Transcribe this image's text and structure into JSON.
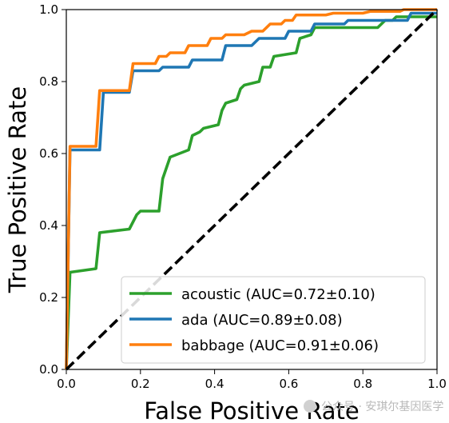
{
  "chart_data": {
    "type": "line",
    "xlabel": "False Positive Rate",
    "ylabel": "True Positive Rate",
    "xlim": [
      0.0,
      1.0
    ],
    "ylim": [
      0.0,
      1.0
    ],
    "xticks": [
      "0.0",
      "0.2",
      "0.4",
      "0.6",
      "0.8",
      "1.0"
    ],
    "yticks": [
      "0.0",
      "0.2",
      "0.4",
      "0.6",
      "0.8",
      "1.0"
    ],
    "grid": false,
    "legend_position": "lower-right",
    "series": [
      {
        "name": "acoustic (AUC=0.72±0.10)",
        "color": "#2ca02c",
        "points": [
          [
            0.0,
            0.0
          ],
          [
            0.01,
            0.27
          ],
          [
            0.08,
            0.28
          ],
          [
            0.09,
            0.38
          ],
          [
            0.17,
            0.39
          ],
          [
            0.19,
            0.43
          ],
          [
            0.2,
            0.44
          ],
          [
            0.25,
            0.44
          ],
          [
            0.26,
            0.53
          ],
          [
            0.28,
            0.59
          ],
          [
            0.33,
            0.61
          ],
          [
            0.34,
            0.65
          ],
          [
            0.36,
            0.66
          ],
          [
            0.37,
            0.67
          ],
          [
            0.41,
            0.68
          ],
          [
            0.42,
            0.72
          ],
          [
            0.43,
            0.74
          ],
          [
            0.46,
            0.75
          ],
          [
            0.47,
            0.78
          ],
          [
            0.48,
            0.79
          ],
          [
            0.52,
            0.8
          ],
          [
            0.53,
            0.84
          ],
          [
            0.55,
            0.84
          ],
          [
            0.56,
            0.87
          ],
          [
            0.62,
            0.88
          ],
          [
            0.63,
            0.92
          ],
          [
            0.66,
            0.93
          ],
          [
            0.67,
            0.95
          ],
          [
            0.84,
            0.95
          ],
          [
            0.86,
            0.97
          ],
          [
            0.88,
            0.97
          ],
          [
            0.89,
            0.98
          ],
          [
            1.0,
            0.98
          ]
        ]
      },
      {
        "name": "ada (AUC=0.89±0.08)",
        "color": "#1f77b4",
        "points": [
          [
            0.0,
            0.0
          ],
          [
            0.01,
            0.61
          ],
          [
            0.09,
            0.61
          ],
          [
            0.1,
            0.77
          ],
          [
            0.17,
            0.77
          ],
          [
            0.18,
            0.83
          ],
          [
            0.25,
            0.83
          ],
          [
            0.26,
            0.84
          ],
          [
            0.33,
            0.84
          ],
          [
            0.34,
            0.86
          ],
          [
            0.42,
            0.86
          ],
          [
            0.43,
            0.9
          ],
          [
            0.5,
            0.9
          ],
          [
            0.52,
            0.92
          ],
          [
            0.59,
            0.92
          ],
          [
            0.6,
            0.94
          ],
          [
            0.66,
            0.94
          ],
          [
            0.67,
            0.96
          ],
          [
            0.75,
            0.96
          ],
          [
            0.76,
            0.97
          ],
          [
            0.92,
            0.97
          ],
          [
            0.93,
            0.99
          ],
          [
            1.0,
            0.99
          ]
        ]
      },
      {
        "name": "babbage (AUC=0.91±0.06)",
        "color": "#ff7f0e",
        "points": [
          [
            0.0,
            0.0
          ],
          [
            0.01,
            0.62
          ],
          [
            0.08,
            0.62
          ],
          [
            0.09,
            0.775
          ],
          [
            0.17,
            0.775
          ],
          [
            0.18,
            0.85
          ],
          [
            0.24,
            0.85
          ],
          [
            0.25,
            0.87
          ],
          [
            0.27,
            0.87
          ],
          [
            0.28,
            0.88
          ],
          [
            0.32,
            0.88
          ],
          [
            0.33,
            0.9
          ],
          [
            0.38,
            0.9
          ],
          [
            0.39,
            0.92
          ],
          [
            0.42,
            0.92
          ],
          [
            0.43,
            0.93
          ],
          [
            0.48,
            0.93
          ],
          [
            0.5,
            0.94
          ],
          [
            0.53,
            0.94
          ],
          [
            0.55,
            0.96
          ],
          [
            0.58,
            0.96
          ],
          [
            0.59,
            0.97
          ],
          [
            0.61,
            0.97
          ],
          [
            0.62,
            0.985
          ],
          [
            0.7,
            0.985
          ],
          [
            0.72,
            0.99
          ],
          [
            0.8,
            0.99
          ],
          [
            0.82,
            0.995
          ],
          [
            0.9,
            0.995
          ],
          [
            0.91,
            1.0
          ],
          [
            1.0,
            1.0
          ]
        ]
      }
    ],
    "reference_line": {
      "points": [
        [
          0.0,
          0.0
        ],
        [
          1.0,
          1.0
        ]
      ],
      "color": "#000000",
      "style": "dashed"
    }
  },
  "watermark": {
    "text": "公众号 · 安琪尔基因医学"
  }
}
